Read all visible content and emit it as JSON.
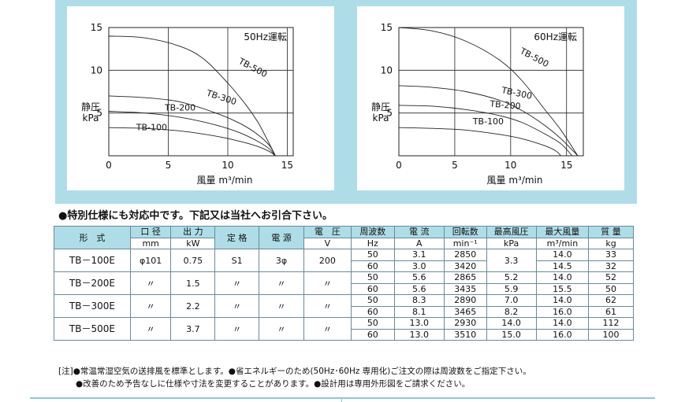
{
  "chart_data": [
    {
      "type": "line",
      "title": "50Hz運転",
      "xlabel": "風量 m³/min",
      "ylabel": "静圧 kPa",
      "xlim": [
        0,
        15.5
      ],
      "ylim": [
        0,
        15
      ],
      "xticks": [
        "0",
        "5",
        "10",
        "15"
      ],
      "yticks": [
        "5",
        "10",
        "15"
      ],
      "grid": true,
      "series": [
        {
          "name": "TB-500",
          "x": [
            0,
            3,
            6,
            8,
            10,
            11.5,
            12.5,
            13.2,
            14.0
          ],
          "y": [
            14.0,
            13.8,
            12.8,
            11.3,
            8.5,
            6.0,
            4.0,
            2.2,
            0
          ]
        },
        {
          "name": "TB-300",
          "x": [
            0,
            3,
            6,
            9,
            11,
            12.5,
            13.5,
            14.0
          ],
          "y": [
            7.0,
            6.8,
            6.3,
            5.0,
            3.8,
            2.5,
            1.2,
            0
          ]
        },
        {
          "name": "TB-200",
          "x": [
            0,
            3,
            6,
            9,
            11,
            12.5,
            13.5,
            14.0
          ],
          "y": [
            5.2,
            5.0,
            4.5,
            3.6,
            2.7,
            1.7,
            0.8,
            0
          ]
        },
        {
          "name": "TB-100",
          "x": [
            0,
            3,
            6,
            9,
            11,
            12.5,
            13.5,
            14.0
          ],
          "y": [
            3.3,
            3.2,
            2.9,
            2.3,
            1.7,
            1.1,
            0.5,
            0
          ]
        }
      ]
    },
    {
      "type": "line",
      "title": "60Hz運転",
      "xlabel": "風量 m³/min",
      "ylabel": "静圧 kPa",
      "xlim": [
        0,
        16.5
      ],
      "ylim": [
        0,
        15
      ],
      "xticks": [
        "0",
        "5",
        "10",
        "15"
      ],
      "yticks": [
        "5",
        "10",
        "15"
      ],
      "grid": true,
      "series": [
        {
          "name": "TB-500",
          "x": [
            0,
            3,
            6,
            9,
            11,
            13,
            14.5,
            16.0
          ],
          "y": [
            15.0,
            14.6,
            13.4,
            11.2,
            8.8,
            5.5,
            3.0,
            0
          ]
        },
        {
          "name": "TB-300",
          "x": [
            0,
            3,
            6,
            9,
            11,
            13,
            14.5,
            16.0
          ],
          "y": [
            8.2,
            8.0,
            7.5,
            6.5,
            5.3,
            3.6,
            2.0,
            0
          ]
        },
        {
          "name": "TB-200",
          "x": [
            0,
            3,
            6,
            9,
            11,
            13,
            14.5,
            15.5
          ],
          "y": [
            5.9,
            5.8,
            5.4,
            4.7,
            3.9,
            2.6,
            1.4,
            0
          ]
        },
        {
          "name": "TB-100",
          "x": [
            0,
            3,
            6,
            9,
            11,
            13,
            14.0,
            14.5
          ],
          "y": [
            3.3,
            3.2,
            3.0,
            2.5,
            2.0,
            1.2,
            0.6,
            0
          ]
        }
      ]
    }
  ],
  "notice": "●特別仕様にも対応中です。下記又は当社へお引合下さい。",
  "table": {
    "headers": [
      "形　式",
      "口 径",
      "出 力",
      "定 格",
      "電 源",
      "電　圧",
      "周波数",
      "電 流",
      "回転数",
      "最高風圧",
      "最大風量",
      "質 量"
    ],
    "units": [
      "mm",
      "kW",
      "V",
      "Hz",
      "A",
      "min⁻¹",
      "kPa",
      "m³/min",
      "kg"
    ],
    "models": [
      {
        "model": "TB－100E",
        "bore": "φ101",
        "power": "0.75",
        "rating": "S1",
        "source": "3φ",
        "voltage": "200",
        "rows": [
          {
            "hz": "50",
            "current": "3.1",
            "rpm": "2850",
            "flow": "14.0",
            "mass": "33"
          },
          {
            "hz": "60",
            "current": "3.0",
            "rpm": "3420",
            "flow": "14.5",
            "mass": "32"
          }
        ],
        "pressure": [
          "3.3"
        ]
      },
      {
        "model": "TB－200E",
        "bore": "〃",
        "power": "1.5",
        "rating": "〃",
        "source": "〃",
        "voltage": "〃",
        "rows": [
          {
            "hz": "50",
            "current": "5.6",
            "rpm": "2865",
            "flow": "14.0",
            "mass": "52"
          },
          {
            "hz": "60",
            "current": "5.6",
            "rpm": "3435",
            "flow": "15.5",
            "mass": "50"
          }
        ],
        "pressure": [
          "5.2",
          "5.9"
        ]
      },
      {
        "model": "TB－300E",
        "bore": "〃",
        "power": "2.2",
        "rating": "〃",
        "source": "〃",
        "voltage": "〃",
        "rows": [
          {
            "hz": "50",
            "current": "8.3",
            "rpm": "2890",
            "flow": "14.0",
            "mass": "62"
          },
          {
            "hz": "60",
            "current": "8.1",
            "rpm": "3465",
            "flow": "16.0",
            "mass": "61"
          }
        ],
        "pressure": [
          "7.0",
          "8.2"
        ]
      },
      {
        "model": "TB－500E",
        "bore": "〃",
        "power": "3.7",
        "rating": "〃",
        "source": "〃",
        "voltage": "〃",
        "rows": [
          {
            "hz": "50",
            "current": "13.0",
            "rpm": "2930",
            "flow": "14.0",
            "mass": "112"
          },
          {
            "hz": "60",
            "current": "13.0",
            "rpm": "3510",
            "flow": "16.0",
            "mass": "100"
          }
        ],
        "pressure": [
          "14.0",
          "15.0"
        ]
      }
    ]
  },
  "notes": {
    "line1": "[注]●常温常湿空気の送排風を標準とします。●省エネルギーのため(50Hz･60Hz 専用化)ご注文の際は周波数をご指定下さい。",
    "line2": "●改善のため予告なしに仕様や寸法を変更することがあります。●設計用は専用外形図をご請求ください。"
  }
}
